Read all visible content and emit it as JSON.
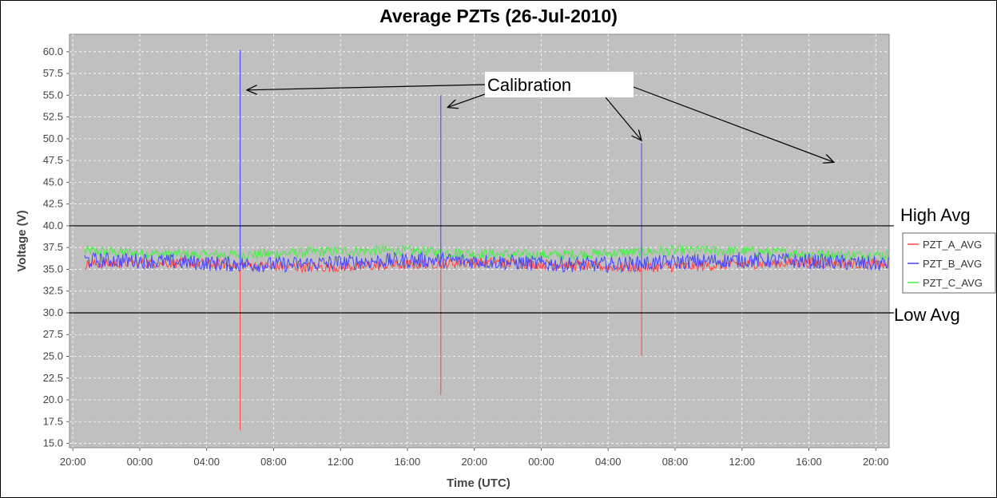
{
  "chart_data": {
    "type": "line",
    "title": "Average PZTs (26-Jul-2010)",
    "xlabel": "Time (UTC)",
    "ylabel": "Voltage (V)",
    "x_ticks": [
      "20:00",
      "00:00",
      "04:00",
      "08:00",
      "12:00",
      "16:00",
      "20:00",
      "00:00",
      "04:00",
      "08:00",
      "12:00",
      "16:00",
      "20:00"
    ],
    "x_range_hours": [
      -0.2,
      48.8
    ],
    "ylim": [
      14.5,
      62.0
    ],
    "y_ticks": [
      15.0,
      17.5,
      20.0,
      22.5,
      25.0,
      27.5,
      30.0,
      32.5,
      35.0,
      37.5,
      40.0,
      42.5,
      45.0,
      47.5,
      50.0,
      52.5,
      55.0,
      57.5,
      60.0
    ],
    "grid": true,
    "legend_position": "right",
    "series": [
      {
        "name": "PZT_A_AVG",
        "color": "#ff4444",
        "baseline": 35.5,
        "noise": 0.6,
        "spikes": [
          {
            "hour": 10.0,
            "value": 16.5
          },
          {
            "hour": 22.0,
            "value": 20.6
          },
          {
            "hour": 34.0,
            "value": 25.0
          }
        ]
      },
      {
        "name": "PZT_B_AVG",
        "color": "#4444ff",
        "baseline": 35.8,
        "noise": 0.9,
        "spikes": [
          {
            "hour": 10.0,
            "value": 60.2
          },
          {
            "hour": 22.0,
            "value": 55.0
          },
          {
            "hour": 34.0,
            "value": 49.5
          }
        ]
      },
      {
        "name": "PZT_C_AVG",
        "color": "#44ee44",
        "baseline": 36.9,
        "noise": 0.6,
        "spikes": []
      }
    ],
    "reference_lines": [
      {
        "label": "High Avg",
        "value": 40.0
      },
      {
        "label": "Low Avg",
        "value": 30.0
      }
    ],
    "annotation": {
      "label": "Calibration",
      "targets": [
        {
          "hour": 10.4,
          "value": 55.6
        },
        {
          "hour": 22.4,
          "value": 53.6
        },
        {
          "hour": 34.0,
          "value": 49.8
        },
        {
          "hour": 45.5,
          "value": 47.3
        }
      ]
    }
  }
}
